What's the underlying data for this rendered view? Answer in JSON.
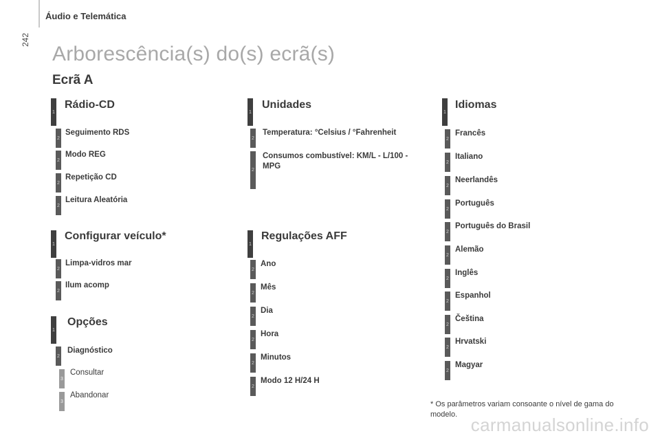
{
  "page": {
    "page_number": "242",
    "section_header": "Áudio e Telemática",
    "title": "Arborescência(s) do(s) ecrã(s)",
    "subtitle": "Ecrã A"
  },
  "columns": {
    "radio": {
      "heading": "Rádio-CD",
      "level": "1",
      "items": [
        {
          "label": "Seguimento RDS",
          "level": "2"
        },
        {
          "label": "Modo REG",
          "level": "2"
        },
        {
          "label": "Repetição CD",
          "level": "2"
        },
        {
          "label": "Leitura Aleatória",
          "level": "2"
        }
      ]
    },
    "vehicle": {
      "heading": "Configurar veículo*",
      "level": "1",
      "items": [
        {
          "label": "Limpa-vidros mar",
          "level": "2"
        },
        {
          "label": "Ilum acomp",
          "level": "2"
        }
      ]
    },
    "options": {
      "heading": "Opções",
      "level": "1",
      "items": [
        {
          "label": "Diagnóstico",
          "level": "2"
        },
        {
          "label": "Consultar",
          "level": "3"
        },
        {
          "label": "Abandonar",
          "level": "3"
        }
      ]
    },
    "units": {
      "heading": "Unidades",
      "level": "1",
      "items": [
        {
          "label": "Temperatura: °Celsius / °Fahrenheit",
          "level": "2"
        },
        {
          "label": "Consumos combustível: KM/L - L/100 - MPG",
          "level": "2"
        }
      ]
    },
    "aff": {
      "heading": "Regulações AFF",
      "level": "1",
      "items": [
        {
          "label": "Ano",
          "level": "2"
        },
        {
          "label": "Mês",
          "level": "2"
        },
        {
          "label": "Dia",
          "level": "2"
        },
        {
          "label": "Hora",
          "level": "2"
        },
        {
          "label": "Minutos",
          "level": "2"
        },
        {
          "label": "Modo 12 H/24 H",
          "level": "2"
        }
      ]
    },
    "languages": {
      "heading": "Idiomas",
      "level": "1",
      "items": [
        {
          "label": "Francês",
          "level": "2"
        },
        {
          "label": "Italiano",
          "level": "2"
        },
        {
          "label": "Neerlandês",
          "level": "2"
        },
        {
          "label": "Português",
          "level": "2"
        },
        {
          "label": "Português do Brasil",
          "level": "2"
        },
        {
          "label": "Alemão",
          "level": "2"
        },
        {
          "label": "Inglês",
          "level": "2"
        },
        {
          "label": "Espanhol",
          "level": "2"
        },
        {
          "label": "Čeština",
          "level": "2"
        },
        {
          "label": "Hrvatski",
          "level": "2"
        },
        {
          "label": "Magyar",
          "level": "2"
        }
      ]
    }
  },
  "footnote": "* Os parâmetros variam consoante o nível de gama do modelo.",
  "watermark": "carmanualsonline.info"
}
